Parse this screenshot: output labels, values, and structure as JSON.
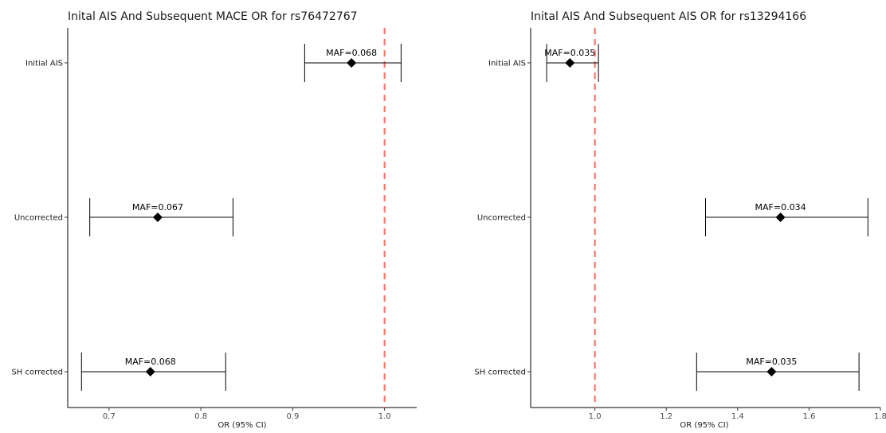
{
  "chart_data": [
    {
      "type": "forest",
      "title": "Inital AIS And Subsequent MACE OR for rs76472767",
      "xlabel": "OR (95% CI)",
      "ylabel": "",
      "xlim": [
        0.655,
        1.035
      ],
      "xticks": [
        "0.7",
        "0.8",
        "0.9",
        "1.0"
      ],
      "reference_line": 1.0,
      "reference_color": "#F8766D",
      "categories": [
        "Initial AIS",
        "Uncorrected",
        "SH corrected"
      ],
      "estimates": [
        {
          "category": "Initial AIS",
          "or": 0.964,
          "ci_low": 0.913,
          "ci_high": 1.018,
          "label": "MAF=0.068"
        },
        {
          "category": "Uncorrected",
          "or": 0.753,
          "ci_low": 0.679,
          "ci_high": 0.835,
          "label": "MAF=0.067"
        },
        {
          "category": "SH corrected",
          "or": 0.745,
          "ci_low": 0.67,
          "ci_high": 0.827,
          "label": "MAF=0.068"
        }
      ]
    },
    {
      "type": "forest",
      "title": "Inital AIS And Subsequent AIS OR for rs13294166",
      "xlabel": "OR (95% CI)",
      "ylabel": "",
      "xlim": [
        0.82,
        1.8
      ],
      "xticks": [
        "1.0",
        "1.2",
        "1.4",
        "1.6",
        "1.8"
      ],
      "reference_line": 1.0,
      "reference_color": "#F8766D",
      "categories": [
        "Initial AIS",
        "Uncorrected",
        "SH corrected"
      ],
      "estimates": [
        {
          "category": "Initial AIS",
          "or": 0.93,
          "ci_low": 0.865,
          "ci_high": 1.01,
          "label": "MAF=0.035"
        },
        {
          "category": "Uncorrected",
          "or": 1.52,
          "ci_low": 1.31,
          "ci_high": 1.765,
          "label": "MAF=0.034"
        },
        {
          "category": "SH corrected",
          "or": 1.495,
          "ci_low": 1.285,
          "ci_high": 1.74,
          "label": "MAF=0.035"
        }
      ]
    }
  ]
}
